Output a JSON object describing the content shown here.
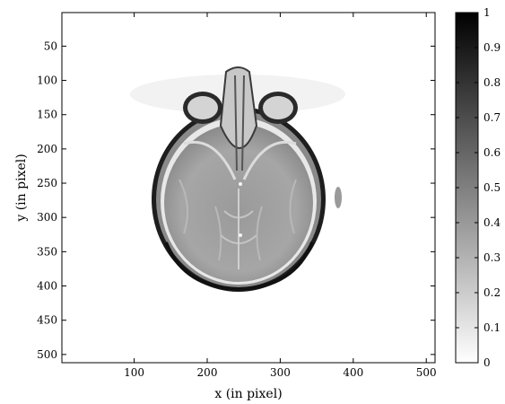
{
  "chart_data": {
    "type": "heatmap",
    "title": "",
    "xlabel": "x (in pixel)",
    "ylabel": "y (in pixel)",
    "xlim": [
      1,
      512
    ],
    "ylim": [
      512,
      1
    ],
    "y_axis_direction": "top-to-bottom",
    "xticks": [
      100,
      200,
      300,
      400,
      500
    ],
    "yticks": [
      50,
      100,
      150,
      200,
      250,
      300,
      350,
      400,
      450,
      500
    ],
    "image_content": "axial grayscale brain scan (head cross-section with eye orbits)",
    "colormap": "gray-reversed (0 = white, 1 = black)",
    "colorbar": {
      "position": "right",
      "range": [
        0,
        1
      ],
      "ticks": [
        "0",
        "0.1",
        "0.2",
        "0.3",
        "0.4",
        "0.5",
        "0.6",
        "0.7",
        "0.8",
        "0.9",
        "1"
      ]
    },
    "colors": {
      "low": "#ffffff",
      "high": "#000000"
    }
  }
}
